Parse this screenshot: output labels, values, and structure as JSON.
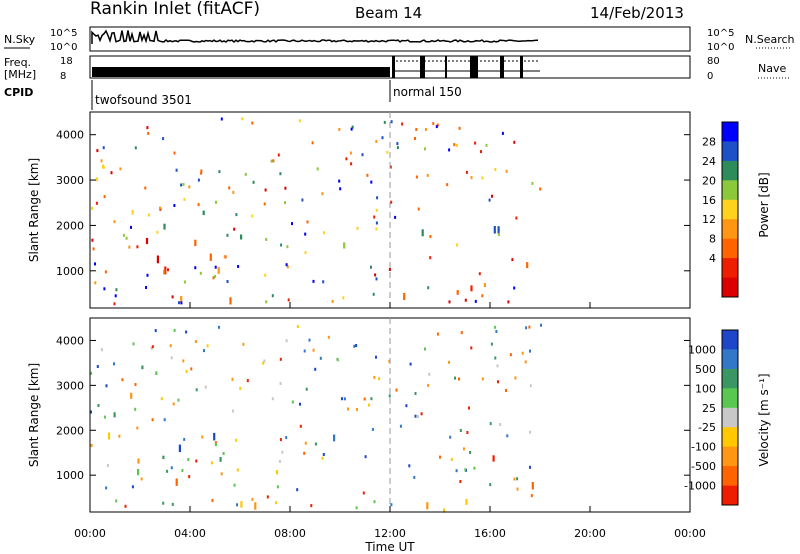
{
  "header": {
    "station": "Rankin Inlet (fitACF)",
    "beam": "Beam 14",
    "date": "14/Feb/2013"
  },
  "panels": {
    "nsky": {
      "label": "N.Sky",
      "ticks": [
        "10^5",
        "10^0"
      ],
      "right_label": "N.Search",
      "right_ticks": [
        "10^5",
        "10^0"
      ]
    },
    "freq": {
      "label_line1": "Freq.",
      "label_line2": "[MHz]",
      "ticks": [
        "18",
        "8"
      ],
      "right_label": "Nave",
      "right_ticks": [
        "80",
        "0"
      ]
    },
    "cpid": {
      "label": "CPID",
      "modes": [
        "twofsound 3501",
        "normal 150"
      ]
    }
  },
  "chart_data": [
    {
      "type": "heatmap",
      "name": "power",
      "xlabel": "",
      "ylabel": "Slant Range [km]",
      "x_range_hours": [
        0,
        24
      ],
      "ylim": [
        180,
        4500
      ],
      "y_ticks": [
        "4000",
        "3000",
        "2000",
        "1000"
      ],
      "colorbar": {
        "label": "Power [dB]",
        "ticks": [
          "28",
          "24",
          "20",
          "16",
          "12",
          "8",
          "4"
        ],
        "colors": [
          "#0000ff",
          "#1e50c8",
          "#2d8c5a",
          "#8cc83c",
          "#ffd21e",
          "#ff9614",
          "#ff6400",
          "#f01e00",
          "#dc0000"
        ]
      }
    },
    {
      "type": "heatmap",
      "name": "velocity",
      "xlabel": "Time UT",
      "ylabel": "Slant Range [km]",
      "x_range_hours": [
        0,
        24
      ],
      "ylim": [
        180,
        4500
      ],
      "y_ticks": [
        "4000",
        "3000",
        "2000",
        "1000"
      ],
      "x_ticks": [
        "00:00",
        "04:00",
        "08:00",
        "12:00",
        "16:00",
        "20:00",
        "00:00"
      ],
      "colorbar": {
        "label": "Velocity [m s⁻¹]",
        "ticks": [
          "1000",
          "500",
          "100",
          "25",
          "-25",
          "-100",
          "-500",
          "-1000"
        ],
        "colors": [
          "#1e46c8",
          "#3278c8",
          "#3c9664",
          "#5ac850",
          "#c8c8c8",
          "#ffc800",
          "#ff9614",
          "#ff6400",
          "#f01e00"
        ]
      }
    }
  ]
}
